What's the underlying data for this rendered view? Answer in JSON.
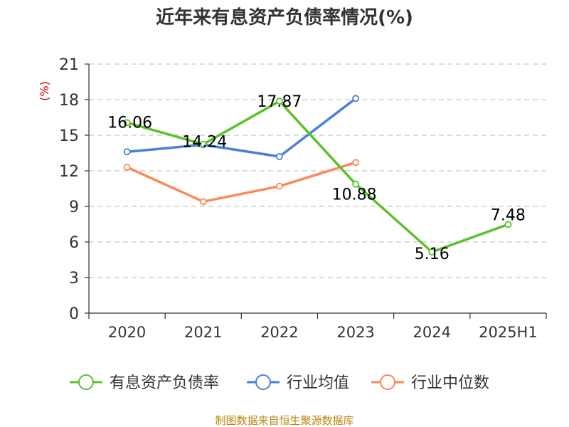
{
  "chart_data": {
    "type": "line",
    "title": "近年来有息资产负债率情况(%)",
    "ylabel": "(%)",
    "ylim": [
      0,
      21
    ],
    "yticks": [
      0,
      3,
      6,
      9,
      12,
      15,
      18,
      21
    ],
    "categories": [
      "2020",
      "2021",
      "2022",
      "2023",
      "2024",
      "2025H1"
    ],
    "grid": true,
    "legend_position": "bottom",
    "series": [
      {
        "name": "有息资产负债率",
        "color": "#5cc12a",
        "values": [
          16.06,
          14.24,
          17.87,
          10.88,
          5.16,
          7.48
        ],
        "labels": [
          "16.06",
          "14.24",
          "17.87",
          "10.88",
          "5.16",
          "7.48"
        ]
      },
      {
        "name": "行业均值",
        "color": "#4a7fdc",
        "values": [
          13.6,
          14.2,
          13.2,
          18.1,
          null,
          null
        ]
      },
      {
        "name": "行业中位数",
        "color": "#f78b5a",
        "values": [
          12.3,
          9.4,
          10.7,
          12.7,
          null,
          null
        ]
      }
    ],
    "source": "制图数据来自恒生聚源数据库"
  }
}
